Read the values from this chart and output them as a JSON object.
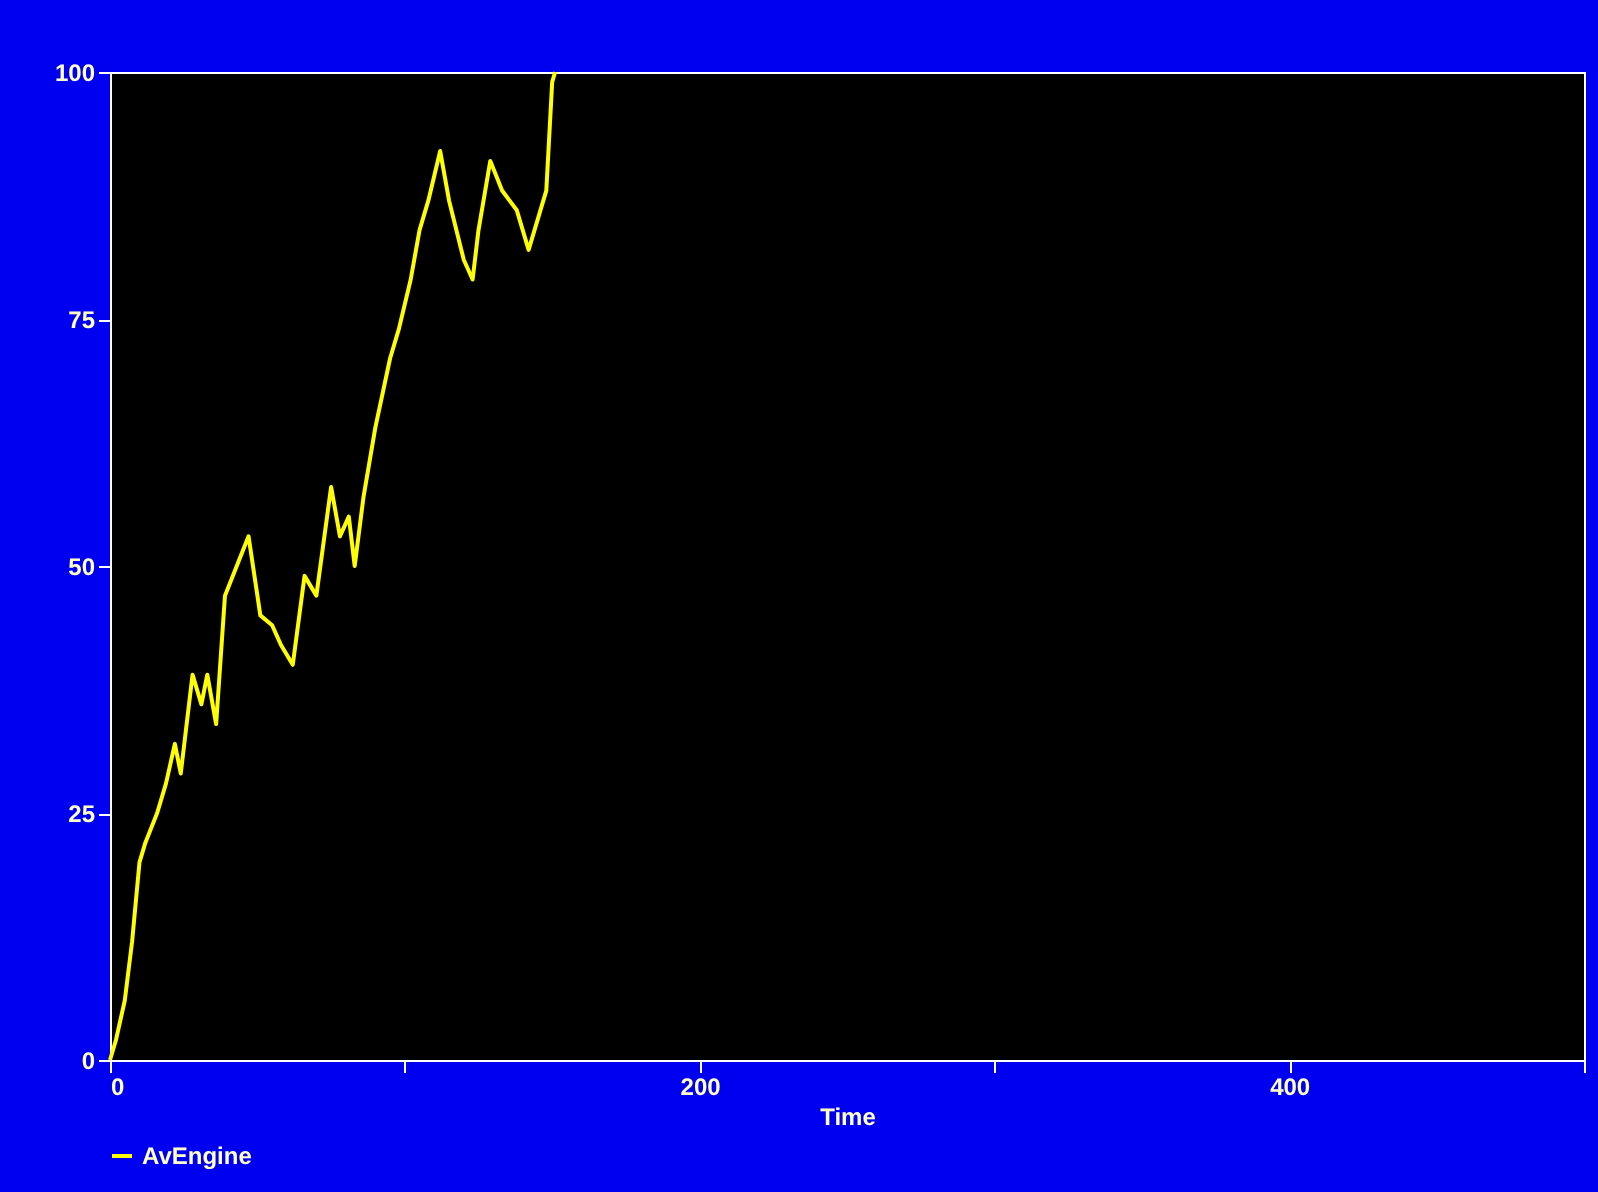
{
  "chart_data": {
    "type": "line",
    "xlabel": "Time",
    "x": [
      0,
      2,
      5,
      7.5,
      10,
      12,
      16,
      19,
      22,
      24,
      28,
      31,
      33,
      36,
      39,
      43,
      47,
      51,
      55,
      58,
      62,
      66,
      70,
      75,
      78,
      81,
      83,
      86,
      90,
      95,
      98,
      102,
      105,
      108,
      112,
      115,
      120,
      123,
      125,
      129,
      133,
      138,
      142,
      146,
      148,
      150,
      151
    ],
    "series": [
      {
        "name": "AvEngine",
        "color": "#ffff00",
        "values": [
          0,
          2,
          6,
          12,
          20,
          22,
          25,
          28,
          32,
          29,
          39,
          36,
          39,
          34,
          47,
          50,
          53,
          45,
          44,
          42,
          40,
          49,
          47,
          58,
          53,
          55,
          50,
          57,
          64,
          71,
          74,
          79,
          84,
          87,
          92,
          87,
          81,
          79,
          84,
          91,
          88,
          86,
          82,
          86,
          88,
          99,
          100
        ]
      }
    ],
    "xlim": [
      0,
      500
    ],
    "xticks": [
      0,
      {
        "value": 100,
        "label": null
      },
      200,
      {
        "value": 300,
        "label": null
      },
      400,
      {
        "value": 500,
        "label": null
      }
    ],
    "ylim": [
      0,
      100
    ],
    "yticks": [
      0,
      25,
      50,
      75,
      100
    ],
    "grid": false,
    "legend": "bottom",
    "marker": "none",
    "line_style": "solid"
  }
}
